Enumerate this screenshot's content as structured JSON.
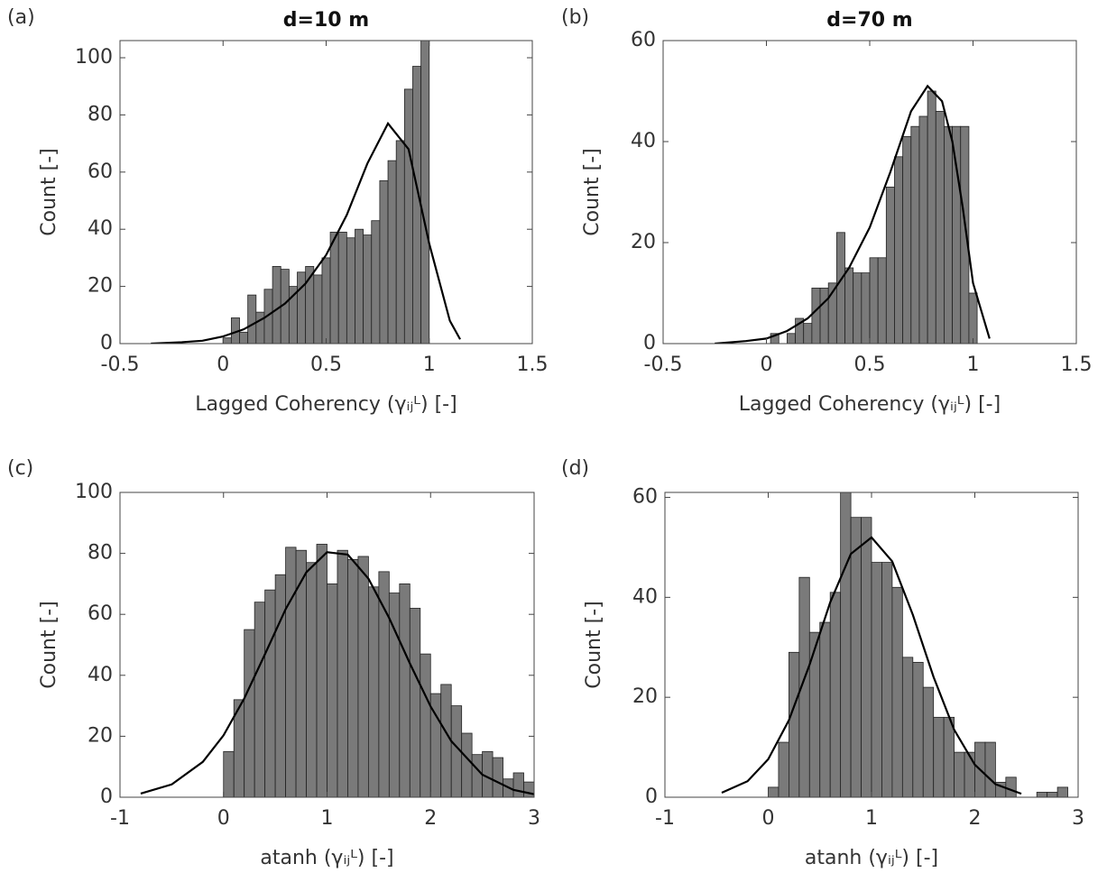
{
  "chart_data": [
    {
      "type": "histogram",
      "panel_label": "(a)",
      "title": "d=10 m",
      "xlabel": "Lagged Coherency (γᵢⱼᴸ) [-]",
      "ylabel": "Count [-]",
      "bins": [
        0,
        0.04,
        0.08,
        0.12,
        0.16,
        0.2,
        0.24,
        0.28,
        0.32,
        0.36,
        0.4,
        0.44,
        0.48,
        0.52,
        0.56,
        0.6,
        0.64,
        0.68,
        0.72,
        0.76,
        0.8,
        0.84,
        0.88,
        0.92,
        0.96,
        1.0
      ],
      "values": [
        2,
        9,
        4,
        17,
        11,
        19,
        27,
        26,
        20,
        25,
        27,
        24,
        30,
        39,
        39,
        37,
        40,
        38,
        43,
        57,
        64,
        71,
        89,
        97,
        108
      ],
      "color": "#7a7a7a",
      "curve": {
        "x": [
          -0.35,
          -0.2,
          -0.1,
          0,
          0.1,
          0.2,
          0.3,
          0.4,
          0.5,
          0.6,
          0.7,
          0.8,
          0.9,
          1.0,
          1.1,
          1.15
        ],
        "y": [
          0,
          0.5,
          1,
          2.5,
          5,
          9,
          14,
          21,
          31,
          45,
          63,
          77,
          68,
          35,
          8,
          1.5
        ],
        "color": "#000000"
      },
      "xlim": [
        -0.5,
        1.5
      ],
      "ylim": [
        0,
        106
      ],
      "xticks": [
        -0.5,
        0,
        0.5,
        1,
        1.5
      ],
      "yticks": [
        0,
        20,
        40,
        60,
        80,
        100
      ]
    },
    {
      "type": "histogram",
      "panel_label": "(b)",
      "title": "d=70 m",
      "xlabel": "Lagged Coherency (γᵢⱼᴸ) [-]",
      "ylabel": "Count [-]",
      "bins": [
        0.02,
        0.06,
        0.1,
        0.14,
        0.18,
        0.22,
        0.26,
        0.3,
        0.34,
        0.38,
        0.42,
        0.46,
        0.5,
        0.54,
        0.58,
        0.62,
        0.66,
        0.7,
        0.74,
        0.78,
        0.82,
        0.86,
        0.9,
        0.94,
        0.98,
        1.02
      ],
      "values": [
        2,
        0,
        2,
        5,
        4,
        11,
        11,
        12,
        22,
        15,
        14,
        14,
        17,
        17,
        31,
        37,
        41,
        43,
        45,
        50,
        46,
        43,
        43,
        43,
        10
      ],
      "color": "#7a7a7a",
      "curve": {
        "x": [
          -0.25,
          -0.1,
          0,
          0.1,
          0.2,
          0.3,
          0.4,
          0.5,
          0.6,
          0.7,
          0.78,
          0.85,
          0.9,
          0.95,
          1.0,
          1.08
        ],
        "y": [
          0,
          0.5,
          1,
          2.5,
          5,
          9,
          15,
          23,
          34,
          46,
          51,
          48,
          40,
          27,
          12,
          1
        ],
        "color": "#000000"
      },
      "xlim": [
        -0.5,
        1.5
      ],
      "ylim": [
        0,
        60
      ],
      "xticks": [
        -0.5,
        0,
        0.5,
        1,
        1.5
      ],
      "yticks": [
        0,
        20,
        40,
        60
      ]
    },
    {
      "type": "histogram",
      "panel_label": "(c)",
      "xlabel": "atanh (γᵢⱼᴸ) [-]",
      "ylabel": "Count [-]",
      "bins": [
        0,
        0.1,
        0.2,
        0.3,
        0.4,
        0.5,
        0.6,
        0.7,
        0.8,
        0.9,
        1.0,
        1.1,
        1.2,
        1.3,
        1.4,
        1.5,
        1.6,
        1.7,
        1.8,
        1.9,
        2.0,
        2.1,
        2.2,
        2.3,
        2.4,
        2.5,
        2.6,
        2.7,
        2.8,
        2.9,
        3.0
      ],
      "values": [
        15,
        32,
        55,
        64,
        68,
        73,
        82,
        81,
        77,
        83,
        70,
        81,
        78,
        79,
        69,
        74,
        67,
        70,
        62,
        47,
        34,
        37,
        30,
        21,
        14,
        15,
        13,
        6,
        8,
        5
      ],
      "color": "#7a7a7a",
      "curve": {
        "x": [
          -0.8,
          -0.5,
          -0.2,
          0,
          0.2,
          0.4,
          0.6,
          0.8,
          1.0,
          1.2,
          1.4,
          1.6,
          1.8,
          2.0,
          2.2,
          2.5,
          2.8,
          3.0
        ],
        "y": [
          1.2,
          4.2,
          11.6,
          20.3,
          32.4,
          46.9,
          61.7,
          73.8,
          80.4,
          79.6,
          71.7,
          58.8,
          43.9,
          29.8,
          18.4,
          7.4,
          2.4,
          1.0
        ],
        "color": "#000000"
      },
      "xlim": [
        -1,
        3
      ],
      "ylim": [
        0,
        100
      ],
      "xticks": [
        -1,
        0,
        1,
        2,
        3
      ],
      "yticks": [
        0,
        20,
        40,
        60,
        80,
        100
      ]
    },
    {
      "type": "histogram",
      "panel_label": "(d)",
      "xlabel": "atanh (γᵢⱼᴸ) [-]",
      "ylabel": "Count [-]",
      "bins": [
        0,
        0.1,
        0.2,
        0.3,
        0.4,
        0.5,
        0.6,
        0.7,
        0.8,
        0.9,
        1.0,
        1.1,
        1.2,
        1.3,
        1.4,
        1.5,
        1.6,
        1.7,
        1.8,
        1.9,
        2.0,
        2.1,
        2.2,
        2.3,
        2.4,
        2.5,
        2.6,
        2.7,
        2.8,
        2.9
      ],
      "values": [
        2,
        11,
        29,
        44,
        33,
        35,
        41,
        63,
        56,
        56,
        47,
        47,
        42,
        28,
        27,
        22,
        16,
        16,
        9,
        9,
        11,
        11,
        3,
        4,
        0,
        0,
        1,
        1,
        2
      ],
      "color": "#7a7a7a",
      "curve": {
        "x": [
          -0.45,
          -0.2,
          0,
          0.2,
          0.4,
          0.6,
          0.8,
          1.0,
          1.2,
          1.4,
          1.6,
          1.8,
          2.0,
          2.2,
          2.45
        ],
        "y": [
          0.9,
          3.2,
          7.6,
          15.4,
          26.5,
          39,
          48.7,
          52,
          47.2,
          36.5,
          24.1,
          13.5,
          6.5,
          2.6,
          0.7
        ],
        "color": "#000000"
      },
      "xlim": [
        -1,
        3
      ],
      "ylim": [
        0,
        61
      ],
      "xticks": [
        -1,
        0,
        1,
        2,
        3
      ],
      "yticks": [
        0,
        20,
        40,
        60
      ]
    }
  ]
}
